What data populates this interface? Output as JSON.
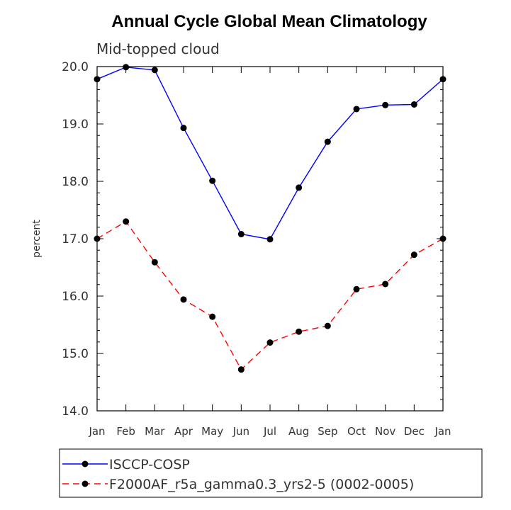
{
  "chart_data": {
    "type": "line",
    "title": "Annual Cycle Global Mean Climatology",
    "subtitle": "Mid-topped cloud",
    "xlabel": "",
    "ylabel": "percent",
    "ylim": [
      14.0,
      20.0
    ],
    "yticks": [
      "14.0",
      "15.0",
      "16.0",
      "17.0",
      "18.0",
      "19.0",
      "20.0"
    ],
    "categories": [
      "Jan",
      "Feb",
      "Mar",
      "Apr",
      "May",
      "Jun",
      "Jul",
      "Aug",
      "Sep",
      "Oct",
      "Nov",
      "Dec",
      "Jan"
    ],
    "series": [
      {
        "name": "ISCCP-COSP",
        "color": "#0000ff",
        "dash": "solid",
        "values": [
          19.78,
          19.99,
          19.94,
          18.93,
          18.01,
          17.08,
          16.99,
          17.89,
          18.69,
          19.26,
          19.33,
          19.34,
          19.78
        ]
      },
      {
        "name": "F2000AF_r5a_gamma0.3_yrs2-5 (0002-0005)",
        "color": "#ff0000",
        "dash": "dashed",
        "values": [
          17.0,
          17.3,
          16.59,
          15.94,
          15.64,
          14.72,
          15.19,
          15.38,
          15.48,
          16.12,
          16.21,
          16.72,
          17.0
        ]
      }
    ]
  }
}
